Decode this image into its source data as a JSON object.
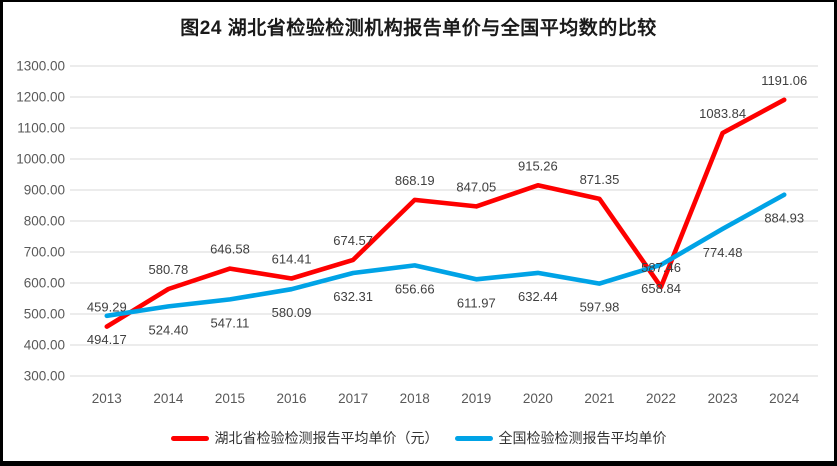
{
  "chart_data": {
    "type": "line",
    "title": "图24 湖北省检验检测机构报告单价与全国平均数的比较",
    "categories": [
      "2013",
      "2014",
      "2015",
      "2016",
      "2017",
      "2018",
      "2019",
      "2020",
      "2021",
      "2022",
      "2023",
      "2024"
    ],
    "series": [
      {
        "name": "湖北省检验检测报告平均单价（元）",
        "color": "#fe0000",
        "label_position": "above",
        "values": [
          459.29,
          580.78,
          646.58,
          614.41,
          674.57,
          868.19,
          847.05,
          915.26,
          871.35,
          587.46,
          1083.84,
          1191.06
        ]
      },
      {
        "name": "全国检验检测报告平均单价",
        "color": "#00a3e6",
        "label_position": "below",
        "values": [
          494.17,
          524.4,
          547.11,
          580.09,
          632.31,
          656.66,
          611.97,
          632.44,
          597.98,
          658.84,
          774.48,
          884.93
        ]
      }
    ],
    "ylim": [
      300,
      1300
    ],
    "ytick_step": 100,
    "ytick_decimals": 2,
    "value_decimals": 2,
    "grid": true,
    "legend_position": "bottom"
  },
  "style": {
    "grid_color": "#d9d9d9",
    "axis_text_color": "#595959",
    "data_label_color": "#404040",
    "title_color": "#1a1a1a",
    "line_width": 4.6
  }
}
